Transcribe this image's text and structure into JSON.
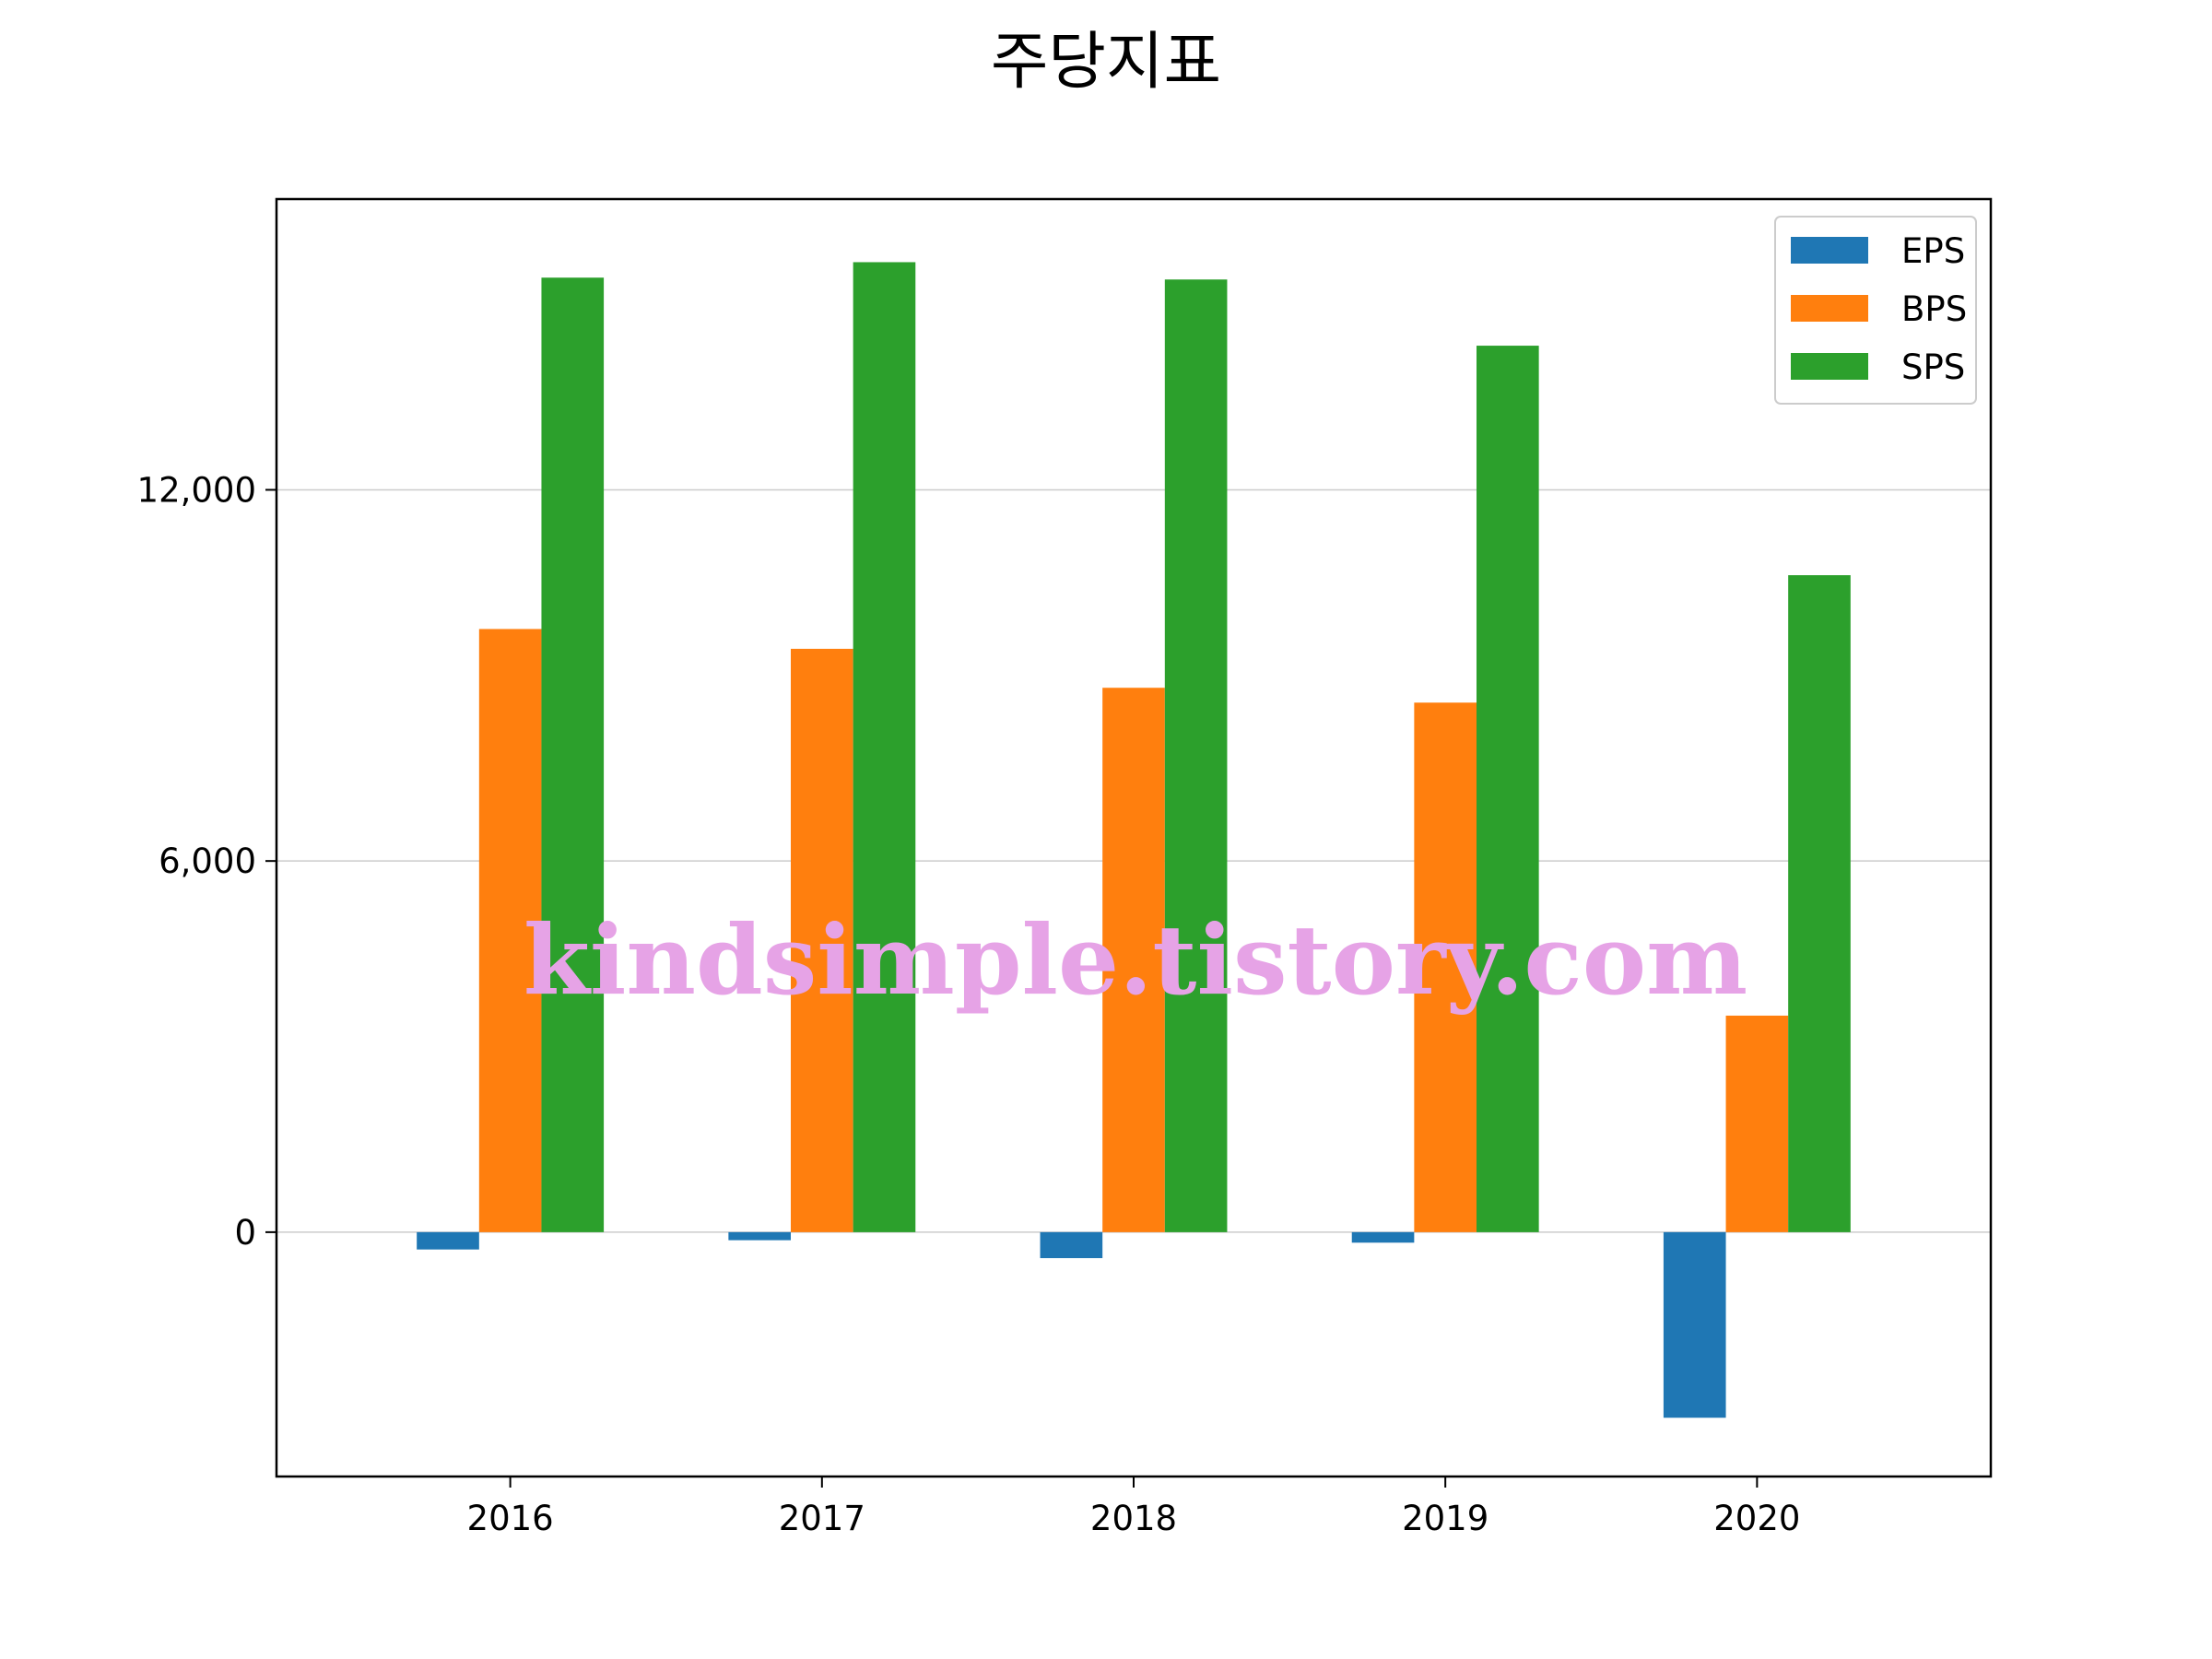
{
  "chart_data": {
    "type": "bar",
    "title": "주당지표",
    "xlabel": "",
    "ylabel": "",
    "categories": [
      "2016",
      "2017",
      "2018",
      "2019",
      "2020"
    ],
    "series": [
      {
        "name": "EPS",
        "color": "#1f77b4",
        "values": [
          -280,
          -130,
          -420,
          -170,
          -3000
        ]
      },
      {
        "name": "BPS",
        "color": "#ff7f0e",
        "values": [
          9750,
          9430,
          8800,
          8560,
          3500
        ]
      },
      {
        "name": "SPS",
        "color": "#2ca02c",
        "values": [
          15430,
          15680,
          15400,
          14330,
          10620
        ]
      }
    ],
    "ylim": [
      -3950,
      16700
    ],
    "yticks": [
      0,
      6000,
      12000
    ],
    "ytick_labels": [
      "0",
      "6,000",
      "12,000"
    ],
    "grid": "y",
    "legend": "top-right"
  },
  "watermark": "kindsimple.tistory.com"
}
